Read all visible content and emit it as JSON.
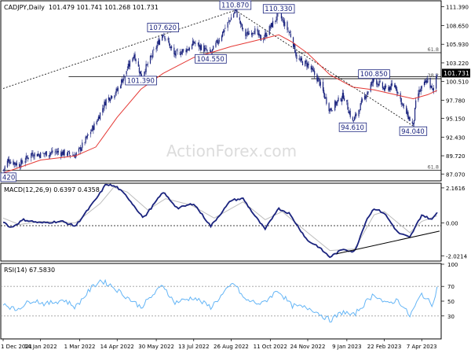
{
  "header": {
    "symbol": "CADJPY,Daily",
    "ohlc": "101.479 101.741 101.268 101.731"
  },
  "watermark": "ActionForex.com",
  "colors": {
    "bg": "#ffffff",
    "candle": "#1a237e",
    "ema": "#e53935",
    "macd_line": "#1a237e",
    "macd_signal": "#bdbdbd",
    "rsi_line": "#64b5f6",
    "frame": "#000000",
    "grid_line": "#000000",
    "dashed_grid": "#9e9e9e",
    "price_tag_bg": "#000000",
    "price_tag_fg": "#ffffff",
    "watermark": "#dcdcdc"
  },
  "chart_data": [
    {
      "type": "candlestick",
      "title": "CADJPY,Daily",
      "ylim": [
        86.07,
        112.13
      ],
      "y_ticks": [
        "111.390",
        "108.650",
        "105.930",
        "103.220",
        "100.510",
        "97.780",
        "95.150",
        "92.430",
        "89.720",
        "87.070"
      ],
      "current_price": "101.731",
      "price_path": [
        {
          "date": "2021-12-01",
          "price": 87.6
        },
        {
          "date": "2021-12-07",
          "price": 89.1
        },
        {
          "date": "2021-12-20",
          "price": 88.4
        },
        {
          "date": "2022-01-03",
          "price": 90.0
        },
        {
          "date": "2022-01-14",
          "price": 89.9
        },
        {
          "date": "2022-02-01",
          "price": 90.3
        },
        {
          "date": "2022-02-24",
          "price": 89.8
        },
        {
          "date": "2022-03-01",
          "price": 90.6
        },
        {
          "date": "2022-03-20",
          "price": 94.5
        },
        {
          "date": "2022-04-01",
          "price": 97.8
        },
        {
          "date": "2022-04-14",
          "price": 99.2
        },
        {
          "date": "2022-04-22",
          "price": 101.3
        },
        {
          "date": "2022-05-04",
          "price": 104.5
        },
        {
          "date": "2022-05-12",
          "price": 101.39
        },
        {
          "date": "2022-05-20",
          "price": 103.0
        },
        {
          "date": "2022-06-07",
          "price": 107.62
        },
        {
          "date": "2022-06-20",
          "price": 104.4
        },
        {
          "date": "2022-07-10",
          "price": 105.5
        },
        {
          "date": "2022-07-13",
          "price": 106.2
        },
        {
          "date": "2022-08-02",
          "price": 104.55
        },
        {
          "date": "2022-08-19",
          "price": 108.3
        },
        {
          "date": "2022-08-31",
          "price": 110.87
        },
        {
          "date": "2022-09-11",
          "price": 107.2
        },
        {
          "date": "2022-09-22",
          "price": 108.0
        },
        {
          "date": "2022-10-01",
          "price": 106.5
        },
        {
          "date": "2022-10-11",
          "price": 108.4
        },
        {
          "date": "2022-10-21",
          "price": 110.33
        },
        {
          "date": "2022-11-05",
          "price": 107.0
        },
        {
          "date": "2022-11-12",
          "price": 103.6
        },
        {
          "date": "2022-11-24",
          "price": 103.0
        },
        {
          "date": "2022-12-07",
          "price": 100.6
        },
        {
          "date": "2022-12-20",
          "price": 96.4
        },
        {
          "date": "2023-01-05",
          "price": 98.5
        },
        {
          "date": "2023-01-16",
          "price": 94.61
        },
        {
          "date": "2023-01-30",
          "price": 98.3
        },
        {
          "date": "2023-02-10",
          "price": 100.85
        },
        {
          "date": "2023-02-22",
          "price": 99.4
        },
        {
          "date": "2023-03-07",
          "price": 99.9
        },
        {
          "date": "2023-03-17",
          "price": 96.6
        },
        {
          "date": "2023-03-28",
          "price": 94.04
        },
        {
          "date": "2023-04-01",
          "price": 98.4
        },
        {
          "date": "2023-04-07",
          "price": 99.5
        },
        {
          "date": "2023-04-14",
          "price": 100.8
        },
        {
          "date": "2023-04-20",
          "price": 99.0
        },
        {
          "date": "2023-04-25",
          "price": 101.73
        }
      ],
      "ema_path": [
        {
          "date": "2021-12-01",
          "price": 87.2
        },
        {
          "date": "2022-01-14",
          "price": 89.1
        },
        {
          "date": "2022-02-24",
          "price": 89.7
        },
        {
          "date": "2022-03-20",
          "price": 91.0
        },
        {
          "date": "2022-04-14",
          "price": 95.3
        },
        {
          "date": "2022-05-12",
          "price": 99.4
        },
        {
          "date": "2022-06-07",
          "price": 101.7
        },
        {
          "date": "2022-07-13",
          "price": 104.0
        },
        {
          "date": "2022-08-02",
          "price": 104.7
        },
        {
          "date": "2022-08-26",
          "price": 105.6
        },
        {
          "date": "2022-09-22",
          "price": 106.4
        },
        {
          "date": "2022-10-21",
          "price": 107.3
        },
        {
          "date": "2022-11-05",
          "price": 106.3
        },
        {
          "date": "2022-11-24",
          "price": 104.6
        },
        {
          "date": "2022-12-20",
          "price": 101.5
        },
        {
          "date": "2023-01-16",
          "price": 99.7
        },
        {
          "date": "2023-02-10",
          "price": 99.3
        },
        {
          "date": "2023-03-07",
          "price": 98.6
        },
        {
          "date": "2023-03-28",
          "price": 98.0
        },
        {
          "date": "2023-04-14",
          "price": 98.6
        },
        {
          "date": "2023-04-25",
          "price": 99.2
        }
      ],
      "annotations": [
        {
          "label": "110.870",
          "date": "2022-08-31",
          "price": 110.87,
          "anchor": "above"
        },
        {
          "label": "110.330",
          "date": "2022-10-21",
          "price": 110.33,
          "anchor": "above"
        },
        {
          "label": "107.620",
          "date": "2022-06-07",
          "price": 107.62,
          "anchor": "above"
        },
        {
          "label": "104.550",
          "date": "2022-08-02",
          "price": 104.55,
          "anchor": "below"
        },
        {
          "label": "101.390",
          "date": "2022-05-12",
          "price": 101.39,
          "anchor": "below"
        },
        {
          "label": "100.850",
          "date": "2023-02-10",
          "price": 100.85,
          "anchor": "above"
        },
        {
          "label": "94.610",
          "date": "2023-01-16",
          "price": 94.61,
          "anchor": "below"
        },
        {
          "label": "94.040",
          "date": "2023-03-28",
          "price": 94.04,
          "anchor": "below"
        },
        {
          "label": "420",
          "date": "2021-12-01",
          "price": 86.6,
          "anchor": "edge"
        }
      ],
      "trend_lines": [
        {
          "style": "dotted",
          "from": {
            "date": "2021-12-01",
            "price": 99.5
          },
          "to": {
            "date": "2022-08-31",
            "price": 110.87
          }
        },
        {
          "style": "dotted",
          "from": {
            "date": "2022-08-31",
            "price": 110.87
          },
          "to": {
            "date": "2023-03-28",
            "price": 94.04
          }
        }
      ],
      "horizontal_levels": [
        {
          "price": 104.7,
          "from_date": "2022-07-20",
          "label": "61.8"
        },
        {
          "price": 101.2,
          "from_date": "2022-02-16",
          "label": ""
        },
        {
          "price": 100.92,
          "from_date": "2022-11-28",
          "label": "38.2"
        },
        {
          "price": 87.6,
          "from_date": "2021-12-01",
          "label": "61.8"
        }
      ],
      "x_ticks": [
        "1 Dec 2021",
        "14 Jan 2022",
        "1 Mar 2022",
        "14 Apr 2022",
        "30 May 2022",
        "13 Jul 2022",
        "26 Aug 2022",
        "11 Oct 2022",
        "24 Nov 2022",
        "9 Jan 2023",
        "22 Feb 2023",
        "7 Apr 2023"
      ]
    },
    {
      "type": "line",
      "title": "MACD(12,26,9) 0.6397 0.4358",
      "ylim": [
        -2.3,
        2.4
      ],
      "y_ticks": [
        "2.1616",
        "0.00",
        "-2.0214"
      ],
      "series": [
        {
          "name": "MACD",
          "points": [
            {
              "date": "2021-12-01",
              "value": 0.1
            },
            {
              "date": "2021-12-10",
              "value": -0.3
            },
            {
              "date": "2021-12-25",
              "value": 0.2
            },
            {
              "date": "2022-01-14",
              "value": 0.0
            },
            {
              "date": "2022-02-08",
              "value": 0.1
            },
            {
              "date": "2022-02-24",
              "value": -0.2
            },
            {
              "date": "2022-03-22",
              "value": 1.6
            },
            {
              "date": "2022-04-01",
              "value": 2.4
            },
            {
              "date": "2022-04-14",
              "value": 2.2
            },
            {
              "date": "2022-04-26",
              "value": 1.6
            },
            {
              "date": "2022-05-15",
              "value": 0.3
            },
            {
              "date": "2022-06-07",
              "value": 1.9
            },
            {
              "date": "2022-06-24",
              "value": 0.9
            },
            {
              "date": "2022-07-13",
              "value": 1.2
            },
            {
              "date": "2022-08-02",
              "value": -0.2
            },
            {
              "date": "2022-08-26",
              "value": 1.4
            },
            {
              "date": "2022-09-09",
              "value": 1.5
            },
            {
              "date": "2022-09-22",
              "value": 0.5
            },
            {
              "date": "2022-10-05",
              "value": -0.4
            },
            {
              "date": "2022-10-20",
              "value": 0.9
            },
            {
              "date": "2022-11-02",
              "value": 0.6
            },
            {
              "date": "2022-11-24",
              "value": -1.1
            },
            {
              "date": "2022-12-05",
              "value": -1.4
            },
            {
              "date": "2022-12-20",
              "value": -2.1
            },
            {
              "date": "2023-01-05",
              "value": -1.6
            },
            {
              "date": "2023-01-18",
              "value": -1.8
            },
            {
              "date": "2023-02-01",
              "value": 0.2
            },
            {
              "date": "2023-02-10",
              "value": 0.9
            },
            {
              "date": "2023-02-22",
              "value": 0.6
            },
            {
              "date": "2023-03-10",
              "value": -0.6
            },
            {
              "date": "2023-03-24",
              "value": -0.9
            },
            {
              "date": "2023-04-07",
              "value": 0.5
            },
            {
              "date": "2023-04-19",
              "value": 0.2
            },
            {
              "date": "2023-04-25",
              "value": 0.64
            }
          ]
        },
        {
          "name": "Signal",
          "points": [
            {
              "date": "2021-12-01",
              "value": 0.3
            },
            {
              "date": "2021-12-20",
              "value": -0.1
            },
            {
              "date": "2022-01-14",
              "value": 0.1
            },
            {
              "date": "2022-02-24",
              "value": 0.0
            },
            {
              "date": "2022-03-25",
              "value": 1.2
            },
            {
              "date": "2022-04-10",
              "value": 2.2
            },
            {
              "date": "2022-04-26",
              "value": 1.9
            },
            {
              "date": "2022-05-20",
              "value": 0.8
            },
            {
              "date": "2022-06-10",
              "value": 1.5
            },
            {
              "date": "2022-07-10",
              "value": 1.1
            },
            {
              "date": "2022-08-06",
              "value": 0.3
            },
            {
              "date": "2022-09-09",
              "value": 1.3
            },
            {
              "date": "2022-10-05",
              "value": 0.2
            },
            {
              "date": "2022-10-25",
              "value": 0.7
            },
            {
              "date": "2022-11-24",
              "value": -0.6
            },
            {
              "date": "2022-12-20",
              "value": -1.7
            },
            {
              "date": "2023-01-18",
              "value": -1.6
            },
            {
              "date": "2023-02-10",
              "value": 0.5
            },
            {
              "date": "2023-02-22",
              "value": 0.7
            },
            {
              "date": "2023-03-24",
              "value": -0.6
            },
            {
              "date": "2023-04-07",
              "value": 0.1
            },
            {
              "date": "2023-04-25",
              "value": 0.44
            }
          ]
        }
      ],
      "trend_lines": [
        {
          "from": {
            "date": "2022-12-28",
            "value": -1.9
          },
          "to": {
            "date": "2023-04-28",
            "value": -0.5
          }
        }
      ]
    },
    {
      "type": "line",
      "title": "RSI(14) 67.5830",
      "ylim": [
        0,
        100
      ],
      "y_ticks": [
        "100",
        "70",
        "50",
        "30"
      ],
      "series": [
        {
          "name": "RSI(14)",
          "points": [
            {
              "date": "2021-12-01",
              "value": 48
            },
            {
              "date": "2021-12-15",
              "value": 38
            },
            {
              "date": "2022-01-05",
              "value": 52
            },
            {
              "date": "2022-01-20",
              "value": 46
            },
            {
              "date": "2022-02-10",
              "value": 52
            },
            {
              "date": "2022-02-24",
              "value": 42
            },
            {
              "date": "2022-03-15",
              "value": 68
            },
            {
              "date": "2022-03-25",
              "value": 78
            },
            {
              "date": "2022-04-06",
              "value": 72
            },
            {
              "date": "2022-04-20",
              "value": 60
            },
            {
              "date": "2022-05-12",
              "value": 42
            },
            {
              "date": "2022-06-07",
              "value": 72
            },
            {
              "date": "2022-06-20",
              "value": 48
            },
            {
              "date": "2022-07-13",
              "value": 55
            },
            {
              "date": "2022-08-02",
              "value": 42
            },
            {
              "date": "2022-08-29",
              "value": 75
            },
            {
              "date": "2022-09-11",
              "value": 52
            },
            {
              "date": "2022-10-01",
              "value": 46
            },
            {
              "date": "2022-10-20",
              "value": 65
            },
            {
              "date": "2022-11-05",
              "value": 44
            },
            {
              "date": "2022-11-28",
              "value": 40
            },
            {
              "date": "2022-12-20",
              "value": 24
            },
            {
              "date": "2023-01-05",
              "value": 36
            },
            {
              "date": "2023-01-16",
              "value": 30
            },
            {
              "date": "2023-02-10",
              "value": 60
            },
            {
              "date": "2023-02-24",
              "value": 46
            },
            {
              "date": "2023-03-10",
              "value": 52
            },
            {
              "date": "2023-03-24",
              "value": 30
            },
            {
              "date": "2023-04-07",
              "value": 60
            },
            {
              "date": "2023-04-19",
              "value": 45
            },
            {
              "date": "2023-04-25",
              "value": 67.58
            }
          ]
        }
      ],
      "reference_lines": [
        70,
        30
      ]
    }
  ]
}
